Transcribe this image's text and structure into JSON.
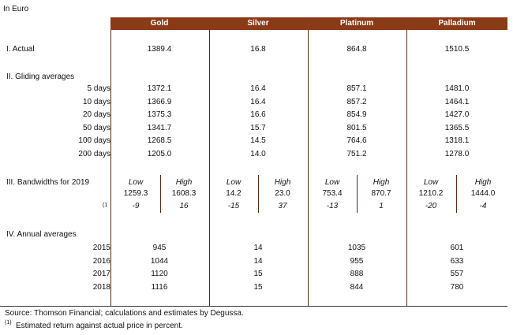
{
  "unit_note": "In Euro",
  "table": {
    "columns": [
      "Gold",
      "Silver",
      "Platinum",
      "Palladium"
    ],
    "actual": {
      "title": "I. Actual",
      "values": [
        "1389.4",
        "16.8",
        "864.8",
        "1510.5"
      ]
    },
    "gliding": {
      "title": "II. Gliding averages",
      "rows": [
        {
          "label": "5 days",
          "values": [
            "1372.1",
            "16.4",
            "857.1",
            "1481.0"
          ]
        },
        {
          "label": "10 days",
          "values": [
            "1366.9",
            "16.4",
            "857.2",
            "1464.1"
          ]
        },
        {
          "label": "20 days",
          "values": [
            "1375.3",
            "16.6",
            "854.9",
            "1427.0"
          ]
        },
        {
          "label": "50 days",
          "values": [
            "1341.7",
            "15.7",
            "801.5",
            "1365.5"
          ]
        },
        {
          "label": "100 days",
          "values": [
            "1268.5",
            "14.5",
            "764.6",
            "1318.1"
          ]
        },
        {
          "label": "200 days",
          "values": [
            "1205.0",
            "14.0",
            "751.2",
            "1278.0"
          ]
        }
      ]
    },
    "bandwidths": {
      "title": "III. Bandwidths for 2019",
      "sublabels": [
        "Low",
        "High"
      ],
      "ranges": [
        [
          "1259.3",
          "1608.3"
        ],
        [
          "14.2",
          "23.0"
        ],
        [
          "753.4",
          "870.7"
        ],
        [
          "1210.2",
          "1444.0"
        ]
      ],
      "return_marker": "(1",
      "returns": [
        [
          "-9",
          "16"
        ],
        [
          "-15",
          "37"
        ],
        [
          "-13",
          "1"
        ],
        [
          "-20",
          "-4"
        ]
      ]
    },
    "annual": {
      "title": "IV. Annual averages",
      "rows": [
        {
          "label": "2015",
          "values": [
            "945",
            "14",
            "1035",
            "601"
          ]
        },
        {
          "label": "2016",
          "values": [
            "1044",
            "14",
            "955",
            "633"
          ]
        },
        {
          "label": "2017",
          "values": [
            "1120",
            "15",
            "888",
            "557"
          ]
        },
        {
          "label": "2018",
          "values": [
            "1116",
            "15",
            "844",
            "780"
          ]
        }
      ]
    }
  },
  "footnotes": {
    "source": "Source: Thomson Financial; calculations and estimates by Degussa.",
    "note_marker": "(1)",
    "note": "Estimated return against actual price in percent."
  }
}
